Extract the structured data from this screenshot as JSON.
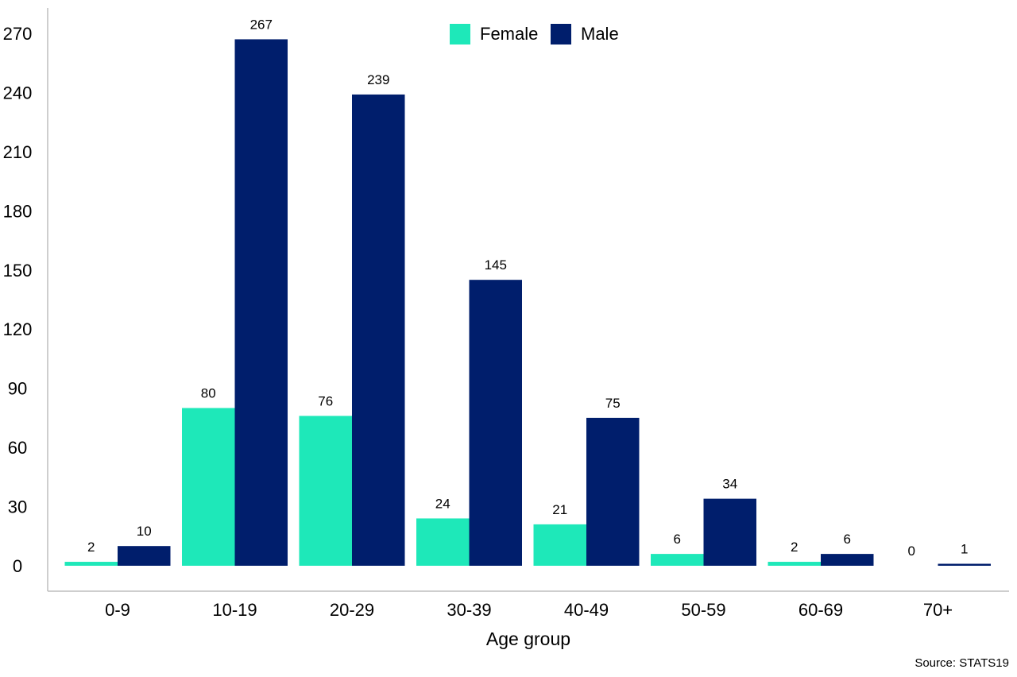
{
  "chart_data": {
    "type": "bar",
    "categories": [
      "0-9",
      "10-19",
      "20-29",
      "30-39",
      "40-49",
      "50-59",
      "60-69",
      "70+"
    ],
    "series": [
      {
        "name": "Female",
        "values": [
          2,
          80,
          76,
          24,
          21,
          6,
          2,
          0
        ],
        "color": "#1ee8b9"
      },
      {
        "name": "Male",
        "values": [
          10,
          267,
          239,
          145,
          75,
          34,
          6,
          1
        ],
        "color": "#001e6c"
      }
    ],
    "title": "",
    "xlabel": "Age group",
    "ylabel": "",
    "ylim": [
      0,
      270
    ],
    "yticks": [
      0,
      30,
      60,
      90,
      120,
      150,
      180,
      210,
      240,
      270
    ],
    "grid": false,
    "legend_position": "top-center",
    "source": "Source: STATS19"
  }
}
